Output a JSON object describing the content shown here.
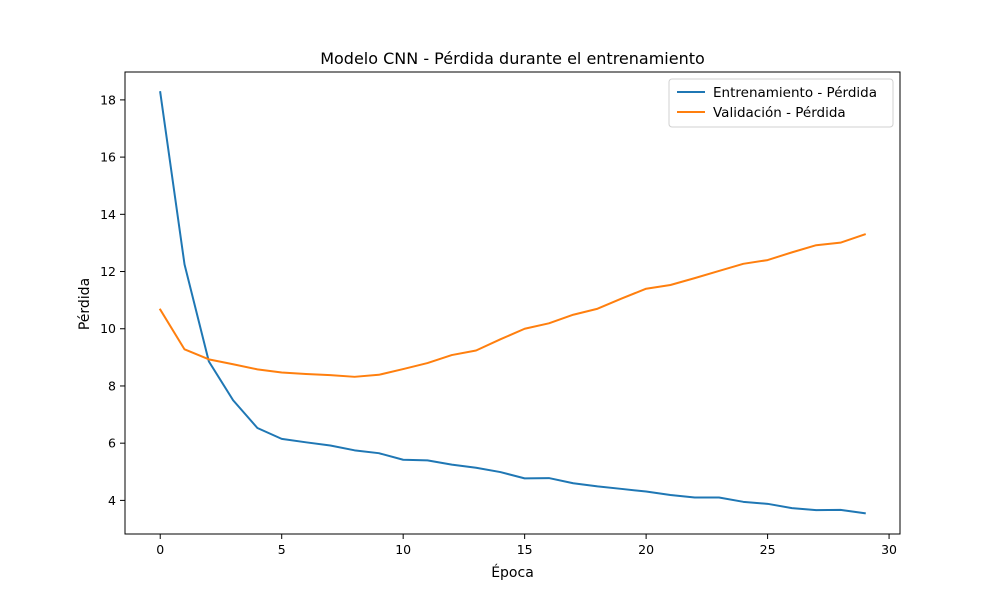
{
  "chart_data": {
    "type": "line",
    "title": "Modelo CNN - Pérdida durante el entrenamiento",
    "xlabel": "Época",
    "ylabel": "Pérdida",
    "xlim": [
      -1.45,
      30.45
    ],
    "ylim": [
      2.825,
      18.975
    ],
    "xticks": [
      0,
      5,
      10,
      15,
      20,
      25,
      30
    ],
    "yticks": [
      4,
      6,
      8,
      10,
      12,
      14,
      16,
      18
    ],
    "grid": false,
    "legend_position": "top-right",
    "x": [
      0,
      1,
      2,
      3,
      4,
      5,
      6,
      7,
      8,
      9,
      10,
      11,
      12,
      13,
      14,
      15,
      16,
      17,
      18,
      19,
      20,
      21,
      22,
      23,
      24,
      25,
      26,
      27,
      28,
      29
    ],
    "series": [
      {
        "name": "Entrenamiento - Pérdida",
        "color": "#1f77b4",
        "values": [
          18.27,
          12.25,
          8.86,
          7.5,
          6.53,
          6.15,
          6.03,
          5.92,
          5.75,
          5.65,
          5.42,
          5.4,
          5.25,
          5.14,
          4.99,
          4.77,
          4.78,
          4.6,
          4.49,
          4.4,
          4.31,
          4.19,
          4.1,
          4.1,
          3.95,
          3.88,
          3.73,
          3.66,
          3.67,
          3.55
        ]
      },
      {
        "name": "Validación - Pérdida",
        "color": "#ff7f0e",
        "values": [
          10.67,
          9.28,
          8.93,
          8.76,
          8.58,
          8.47,
          8.42,
          8.38,
          8.32,
          8.39,
          8.59,
          8.8,
          9.08,
          9.24,
          9.63,
          10.0,
          10.19,
          10.49,
          10.7,
          11.06,
          11.4,
          11.53,
          11.77,
          12.02,
          12.27,
          12.4,
          12.67,
          12.92,
          13.01,
          13.3
        ]
      }
    ]
  }
}
